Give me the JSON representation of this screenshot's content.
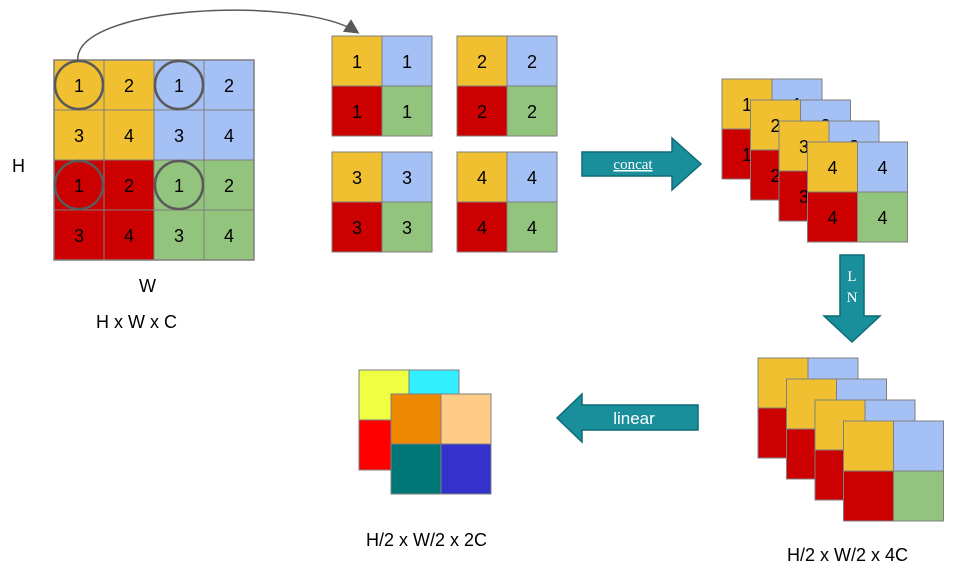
{
  "colors": {
    "yellow": "#F0C030",
    "blue": "#A4C0F4",
    "red": "#CC0000",
    "green": "#93C47D",
    "arrow": "#1A8F9C",
    "arrow_edge": "#0D6B76",
    "grid_line": "#7F7F7F",
    "circle": "#595959",
    "out_yellow": "#EEFF44",
    "out_cyan": "#33EEFF",
    "out_red": "#FF0000",
    "out_orange": "#EE8800",
    "out_peach": "#FFCC88",
    "out_teal": "#007777",
    "out_indigo": "#3333CC"
  },
  "input_grid": {
    "rows": [
      [
        "1",
        "2",
        "1",
        "2"
      ],
      [
        "3",
        "4",
        "3",
        "4"
      ],
      [
        "1",
        "2",
        "1",
        "2"
      ],
      [
        "3",
        "4",
        "3",
        "4"
      ]
    ],
    "colors": [
      [
        "yellow",
        "yellow",
        "blue",
        "blue"
      ],
      [
        "yellow",
        "yellow",
        "blue",
        "blue"
      ],
      [
        "red",
        "red",
        "green",
        "green"
      ],
      [
        "red",
        "red",
        "green",
        "green"
      ]
    ],
    "label_h": "H",
    "label_w": "W",
    "caption": "H x W x C"
  },
  "patches": [
    {
      "label": "1"
    },
    {
      "label": "2"
    },
    {
      "label": "3"
    },
    {
      "label": "4"
    }
  ],
  "concat_label": "concat",
  "ln_label_1": "L",
  "ln_label_2": "N",
  "linear_label": "linear",
  "stack_labels": [
    "1",
    "2",
    "3",
    "4"
  ],
  "caption_4c": "H/2 x W/2 x 4C",
  "caption_2c": "H/2 x W/2 x 2C"
}
